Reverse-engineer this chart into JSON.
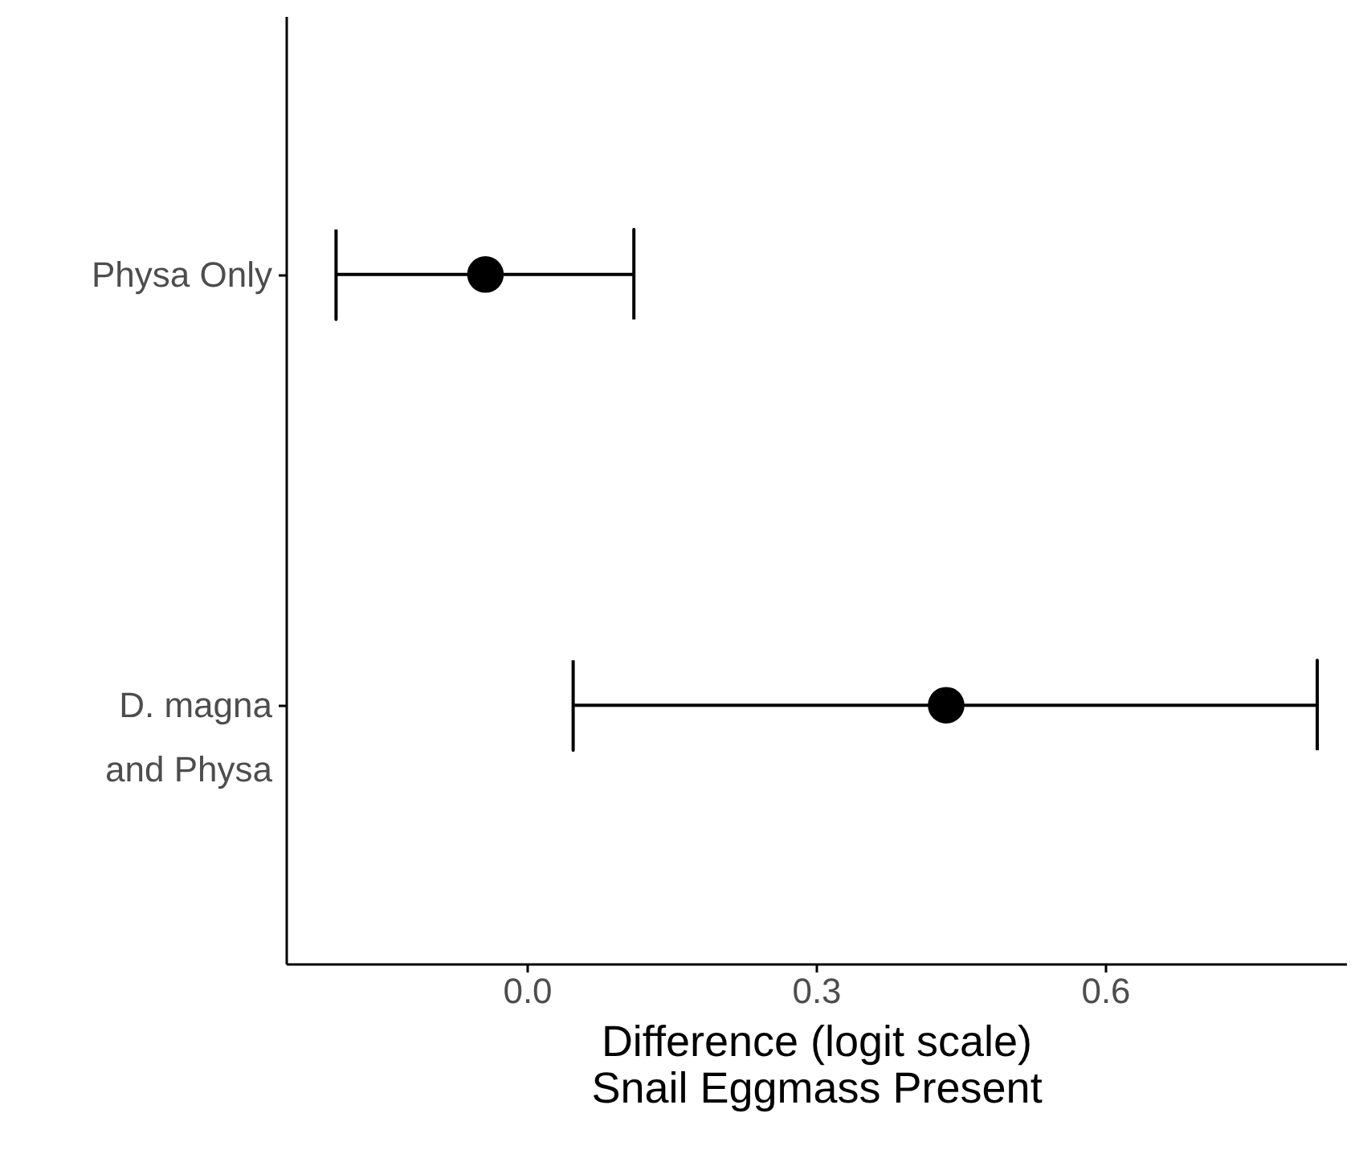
{
  "chart_data": {
    "type": "scatter",
    "orientation": "horizontal",
    "categories": [
      "Physa Only",
      "D. magna\nand Physa"
    ],
    "values": [
      -0.043,
      0.435
    ],
    "errors": [
      [
        -0.198,
        0.111
      ],
      [
        0.048,
        0.82
      ]
    ],
    "color": "#000000",
    "marker": "circle",
    "grid": false,
    "xlabel": "Difference (logit scale)\nSnail Eggmass Present",
    "xlim": [
      -0.25,
      0.85
    ],
    "xticks": [
      {
        "value": 0,
        "label": "0.0"
      },
      0.3,
      0.6
    ]
  }
}
